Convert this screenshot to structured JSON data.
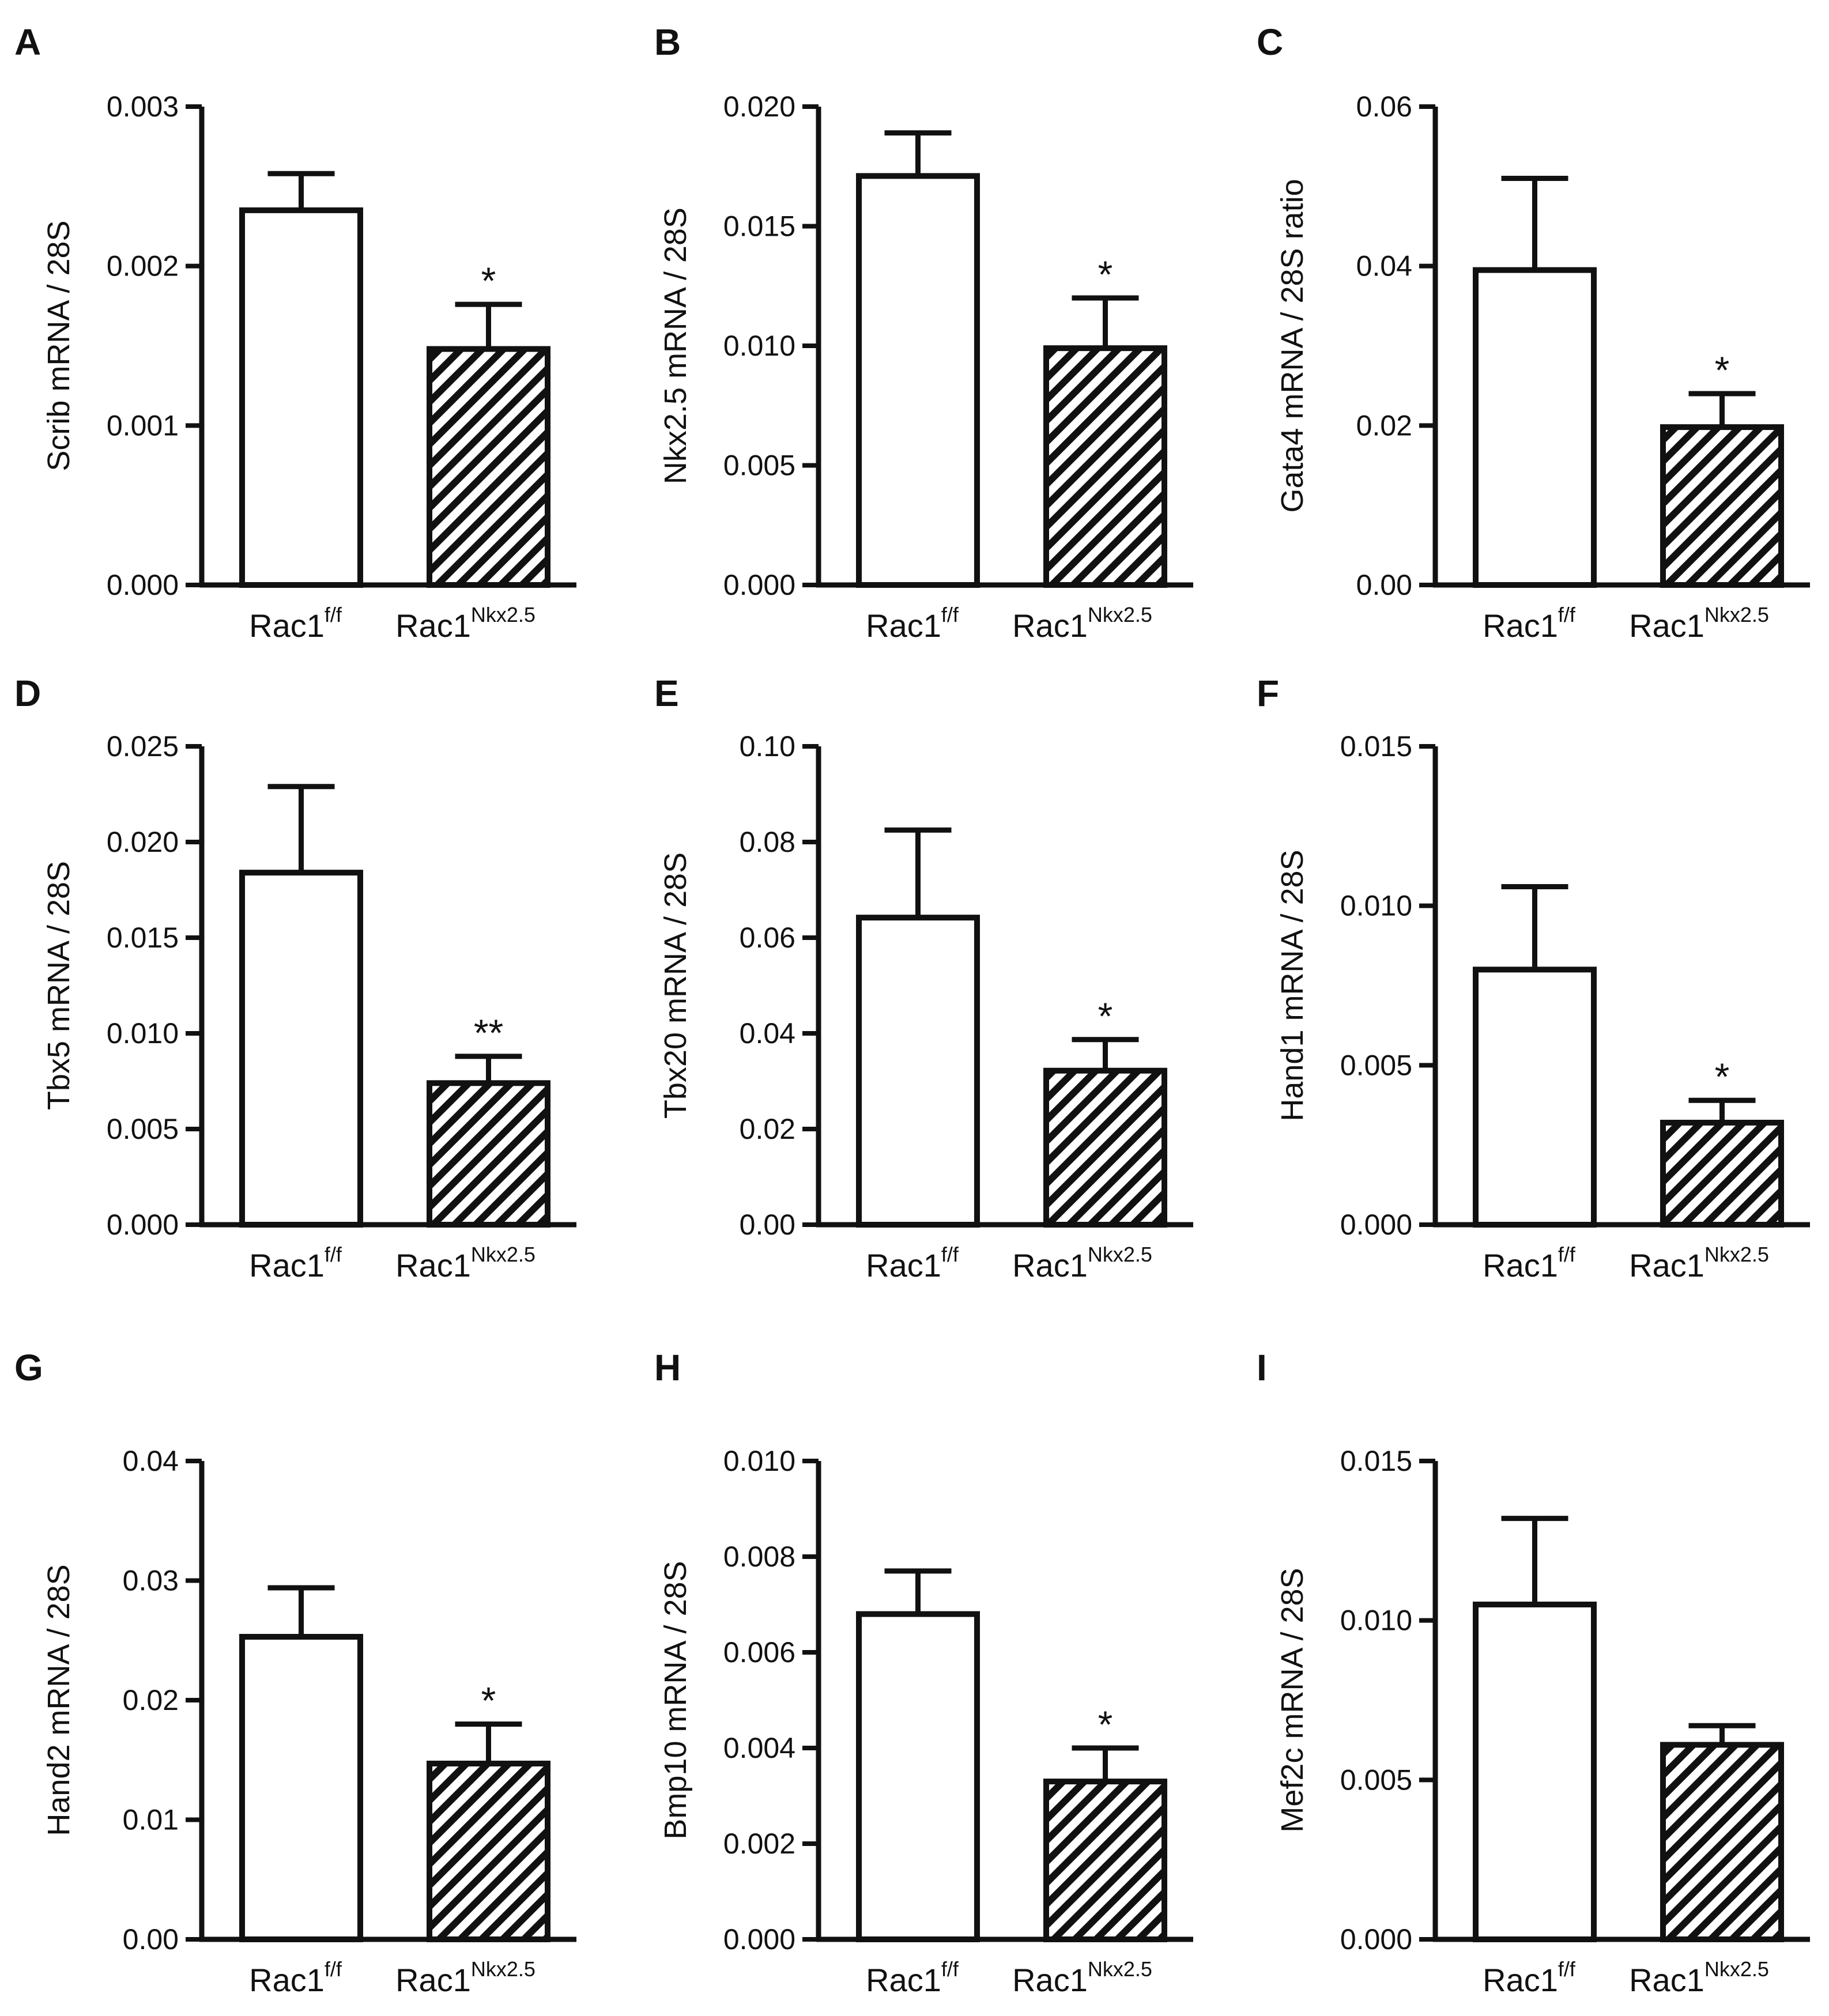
{
  "figure": {
    "categories": [
      {
        "base": "Rac1",
        "sup": "f/f",
        "pattern": "open"
      },
      {
        "base": "Rac1",
        "sup": "Nkx2.5",
        "pattern": "hatched"
      }
    ],
    "colors": {
      "ink": "#111111",
      "fill_open": "#ffffff",
      "hatch": "#111111"
    }
  },
  "chart_data": [
    {
      "panel": "A",
      "type": "bar",
      "ylabel": "Scrib mRNA / 28S",
      "ylim": [
        0,
        0.003
      ],
      "ticks": [
        "0.000",
        "0.001",
        "0.002",
        "0.003"
      ],
      "values": [
        0.00235,
        0.00148
      ],
      "errors": [
        0.00023,
        0.00028
      ],
      "significance": [
        "",
        "*"
      ]
    },
    {
      "panel": "B",
      "type": "bar",
      "ylabel": "Nkx2.5 mRNA / 28S",
      "ylim": [
        0,
        0.02
      ],
      "ticks": [
        "0.000",
        "0.005",
        "0.010",
        "0.015",
        "0.020"
      ],
      "values": [
        0.0171,
        0.0099
      ],
      "errors": [
        0.0018,
        0.0021
      ],
      "significance": [
        "",
        "*"
      ]
    },
    {
      "panel": "C",
      "type": "bar",
      "ylabel": "Gata4 mRNA / 28S ratio",
      "ylim": [
        0,
        0.06
      ],
      "ticks": [
        "0.00",
        "0.02",
        "0.04",
        "0.06"
      ],
      "values": [
        0.0395,
        0.0198
      ],
      "errors": [
        0.0115,
        0.0042
      ],
      "significance": [
        "",
        "*"
      ]
    },
    {
      "panel": "D",
      "type": "bar",
      "ylabel": "Tbx5 mRNA / 28S",
      "ylim": [
        0,
        0.025
      ],
      "ticks": [
        "0.000",
        "0.005",
        "0.010",
        "0.015",
        "0.020",
        "0.025"
      ],
      "values": [
        0.0184,
        0.0074
      ],
      "errors": [
        0.0045,
        0.0014
      ],
      "significance": [
        "",
        "**"
      ]
    },
    {
      "panel": "E",
      "type": "bar",
      "ylabel": "Tbx20 mRNA / 28S",
      "ylim": [
        0,
        0.1
      ],
      "ticks": [
        "0.00",
        "0.02",
        "0.04",
        "0.06",
        "0.08",
        "0.10"
      ],
      "values": [
        0.0642,
        0.0322
      ],
      "errors": [
        0.0183,
        0.0065
      ],
      "significance": [
        "",
        "*"
      ]
    },
    {
      "panel": "F",
      "type": "bar",
      "ylabel": "Hand1 mRNA / 28S",
      "ylim": [
        0,
        0.015
      ],
      "ticks": [
        "0.000",
        "0.005",
        "0.010",
        "0.015"
      ],
      "values": [
        0.008,
        0.0032
      ],
      "errors": [
        0.0026,
        0.0007
      ],
      "significance": [
        "",
        "*"
      ]
    },
    {
      "panel": "G",
      "type": "bar",
      "ylabel": "Hand2 mRNA / 28S",
      "ylim": [
        0,
        0.04
      ],
      "ticks": [
        "0.00",
        "0.01",
        "0.02",
        "0.03",
        "0.04"
      ],
      "values": [
        0.0253,
        0.0147
      ],
      "errors": [
        0.0041,
        0.0033
      ],
      "significance": [
        "",
        "*"
      ]
    },
    {
      "panel": "H",
      "type": "bar",
      "ylabel": "Bmp10 mRNA / 28S",
      "ylim": [
        0,
        0.01
      ],
      "ticks": [
        "0.000",
        "0.002",
        "0.004",
        "0.006",
        "0.008",
        "0.010"
      ],
      "values": [
        0.0068,
        0.0033
      ],
      "errors": [
        0.0009,
        0.0007
      ],
      "significance": [
        "",
        "*"
      ]
    },
    {
      "panel": "I",
      "type": "bar",
      "ylabel": "Mef2c mRNA / 28S",
      "ylim": [
        0,
        0.015
      ],
      "ticks": [
        "0.000",
        "0.005",
        "0.010",
        "0.015"
      ],
      "values": [
        0.0105,
        0.0061
      ],
      "errors": [
        0.0027,
        0.0006
      ],
      "significance": [
        "",
        ""
      ]
    }
  ]
}
